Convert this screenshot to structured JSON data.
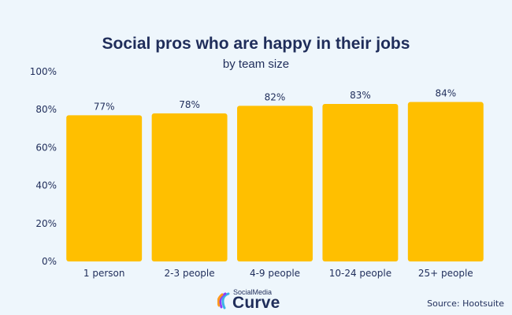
{
  "chart_data": {
    "type": "bar",
    "title": "Social pros who are happy in their jobs",
    "subtitle": "by team size",
    "categories": [
      "1 person",
      "2-3 people",
      "4-9 people",
      "10-24 people",
      "25+ people"
    ],
    "values": [
      77,
      78,
      82,
      83,
      84
    ],
    "value_labels": [
      "77%",
      "78%",
      "82%",
      "83%",
      "84%"
    ],
    "ylim": [
      0,
      100
    ],
    "yticks": [
      0,
      20,
      40,
      60,
      80,
      100
    ],
    "ytick_labels": [
      "0%",
      "20%",
      "40%",
      "60%",
      "80%",
      "100%"
    ],
    "grid": false,
    "bar_color": "#ffbf00"
  },
  "colors": {
    "background": "#eef6fc",
    "text": "#1f2d5a",
    "bar": "#ffbf00"
  },
  "logo": {
    "line1": "SocialMedia",
    "line2": "Curve"
  },
  "source": "Source: Hootsuite"
}
